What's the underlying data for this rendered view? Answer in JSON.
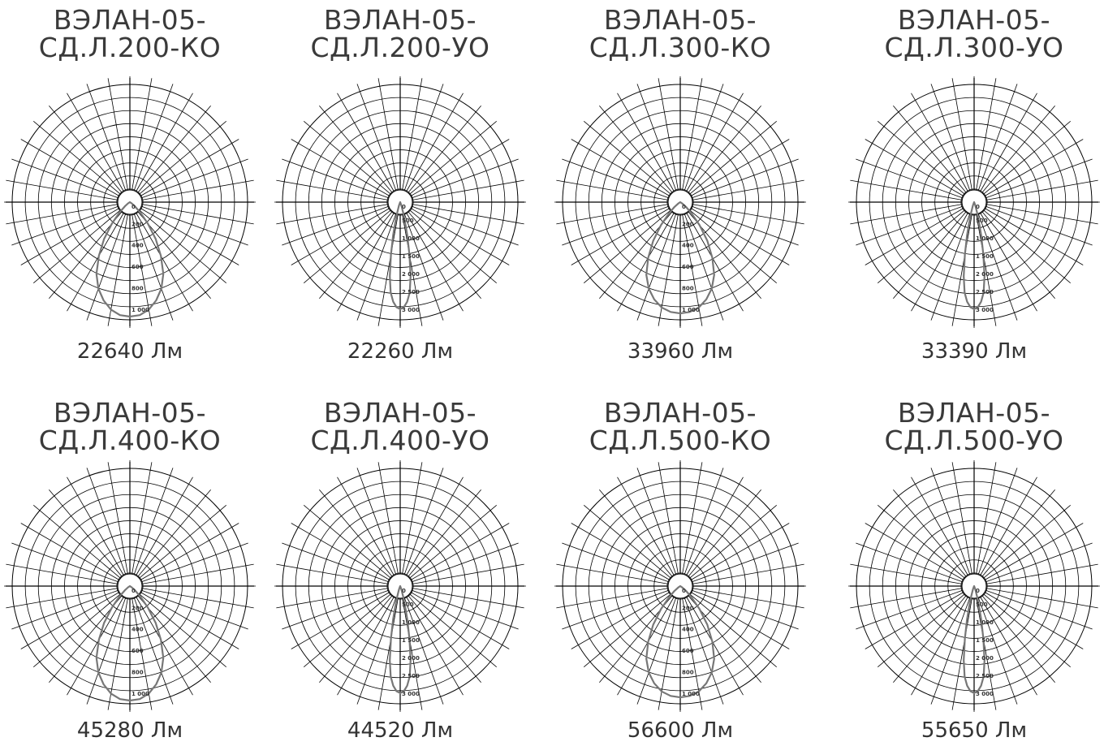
{
  "chart_data": [
    {
      "type": "polar",
      "title_line1": "ВЭЛАН-05-",
      "title_line2": "СД.Л.200-КО",
      "flux_label": "22640 Лм",
      "colors": {
        "grid": "#000000",
        "curve": "#777777",
        "text": "#333333"
      },
      "radial_labels": [
        "0",
        "200",
        "400",
        "600",
        "800",
        "1 000"
      ],
      "rmax": 1100,
      "curve": {
        "theta_deg": [
          0,
          5,
          10,
          15,
          20,
          25,
          30,
          35,
          40,
          45,
          50,
          55,
          60,
          90
        ],
        "r": [
          1070,
          1060,
          1020,
          950,
          860,
          740,
          580,
          420,
          260,
          140,
          60,
          20,
          0,
          0
        ]
      }
    },
    {
      "type": "polar",
      "title_line1": "ВЭЛАН-05-",
      "title_line2": "СД.Л.200-УО",
      "flux_label": "22260 Лм",
      "colors": {
        "grid": "#000000",
        "curve": "#777777",
        "text": "#333333"
      },
      "radial_labels": [
        "0",
        "500",
        "1 000",
        "1 500",
        "2 000",
        "2 500",
        "3 000"
      ],
      "rmax": 3300,
      "curve": {
        "theta_deg": [
          0,
          2,
          4,
          6,
          8,
          10,
          12,
          14,
          16,
          20,
          25,
          90
        ],
        "r": [
          3000,
          2950,
          2800,
          2550,
          2100,
          1500,
          950,
          550,
          300,
          100,
          0,
          0
        ]
      }
    },
    {
      "type": "polar",
      "title_line1": "ВЭЛАН-05-",
      "title_line2": "СД.Л.300-КО",
      "flux_label": "33960 Лм",
      "colors": {
        "grid": "#000000",
        "curve": "#777777",
        "text": "#333333"
      },
      "radial_labels": [
        "0",
        "200",
        "400",
        "600",
        "800",
        "1 000"
      ],
      "rmax": 1100,
      "curve": {
        "theta_deg": [
          0,
          5,
          10,
          15,
          20,
          25,
          30,
          35,
          40,
          45,
          50,
          55,
          60,
          90
        ],
        "r": [
          1040,
          1030,
          1000,
          940,
          860,
          750,
          600,
          440,
          280,
          150,
          70,
          20,
          0,
          0
        ]
      }
    },
    {
      "type": "polar",
      "title_line1": "ВЭЛАН-05-",
      "title_line2": "СД.Л.300-УО",
      "flux_label": "33390 Лм",
      "colors": {
        "grid": "#000000",
        "curve": "#777777",
        "text": "#333333"
      },
      "radial_labels": [
        "0",
        "500",
        "1 000",
        "1 500",
        "2 000",
        "2 500",
        "3 000"
      ],
      "rmax": 3300,
      "curve": {
        "theta_deg": [
          0,
          2,
          4,
          6,
          8,
          10,
          12,
          14,
          16,
          20,
          25,
          90
        ],
        "r": [
          3000,
          2950,
          2800,
          2550,
          2100,
          1500,
          950,
          550,
          300,
          100,
          0,
          0
        ]
      }
    },
    {
      "type": "polar",
      "title_line1": "ВЭЛАН-05-",
      "title_line2": "СД.Л.400-КО",
      "flux_label": "45280 Лм",
      "colors": {
        "grid": "#000000",
        "curve": "#777777",
        "text": "#333333"
      },
      "radial_labels": [
        "0",
        "200",
        "400",
        "600",
        "800",
        "1 000"
      ],
      "rmax": 1100,
      "curve": {
        "theta_deg": [
          0,
          5,
          10,
          15,
          20,
          25,
          30,
          35,
          40,
          45,
          50,
          55,
          60,
          90
        ],
        "r": [
          1070,
          1060,
          1020,
          950,
          860,
          740,
          580,
          420,
          260,
          140,
          60,
          20,
          0,
          0
        ]
      }
    },
    {
      "type": "polar",
      "title_line1": "ВЭЛАН-05-",
      "title_line2": "СД.Л.400-УО",
      "flux_label": "44520 Лм",
      "colors": {
        "grid": "#000000",
        "curve": "#777777",
        "text": "#333333"
      },
      "radial_labels": [
        "0",
        "500",
        "1 000",
        "1 500",
        "2 000",
        "2 500",
        "3 000"
      ],
      "rmax": 3300,
      "curve": {
        "theta_deg": [
          0,
          2,
          4,
          6,
          8,
          10,
          12,
          14,
          16,
          20,
          25,
          90
        ],
        "r": [
          3000,
          2950,
          2800,
          2550,
          2100,
          1500,
          950,
          550,
          300,
          100,
          0,
          0
        ]
      }
    },
    {
      "type": "polar",
      "title_line1": "ВЭЛАН-05-",
      "title_line2": "СД.Л.500-КО",
      "flux_label": "56600 Лм",
      "colors": {
        "grid": "#000000",
        "curve": "#777777",
        "text": "#333333"
      },
      "radial_labels": [
        "0",
        "200",
        "400",
        "600",
        "800",
        "1 000"
      ],
      "rmax": 1100,
      "curve": {
        "theta_deg": [
          0,
          5,
          10,
          15,
          20,
          25,
          30,
          35,
          40,
          45,
          50,
          55,
          60,
          90
        ],
        "r": [
          1040,
          1030,
          1000,
          940,
          860,
          750,
          600,
          440,
          280,
          150,
          70,
          20,
          0,
          0
        ]
      }
    },
    {
      "type": "polar",
      "title_line1": "ВЭЛАН-05-",
      "title_line2": "СД.Л.500-УО",
      "flux_label": "55650 Лм",
      "colors": {
        "grid": "#000000",
        "curve": "#777777",
        "text": "#333333"
      },
      "radial_labels": [
        "0",
        "500",
        "1 000",
        "1 500",
        "2 000",
        "2 500",
        "3 000"
      ],
      "rmax": 3300,
      "curve": {
        "theta_deg": [
          0,
          2,
          4,
          6,
          8,
          10,
          12,
          14,
          16,
          20,
          25,
          90
        ],
        "r": [
          3000,
          2950,
          2800,
          2550,
          2100,
          1500,
          950,
          550,
          300,
          100,
          0,
          0
        ]
      }
    }
  ]
}
